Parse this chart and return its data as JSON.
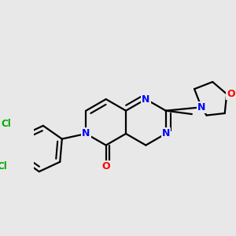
{
  "bg_color": "#e8e8e8",
  "atom_colors": {
    "N": "#0000ff",
    "O": "#ff0000",
    "Cl": "#00aa00"
  },
  "bond_color": "#000000",
  "bond_lw": 1.6,
  "font_size_atom": 9,
  "font_size_cl": 8.5
}
